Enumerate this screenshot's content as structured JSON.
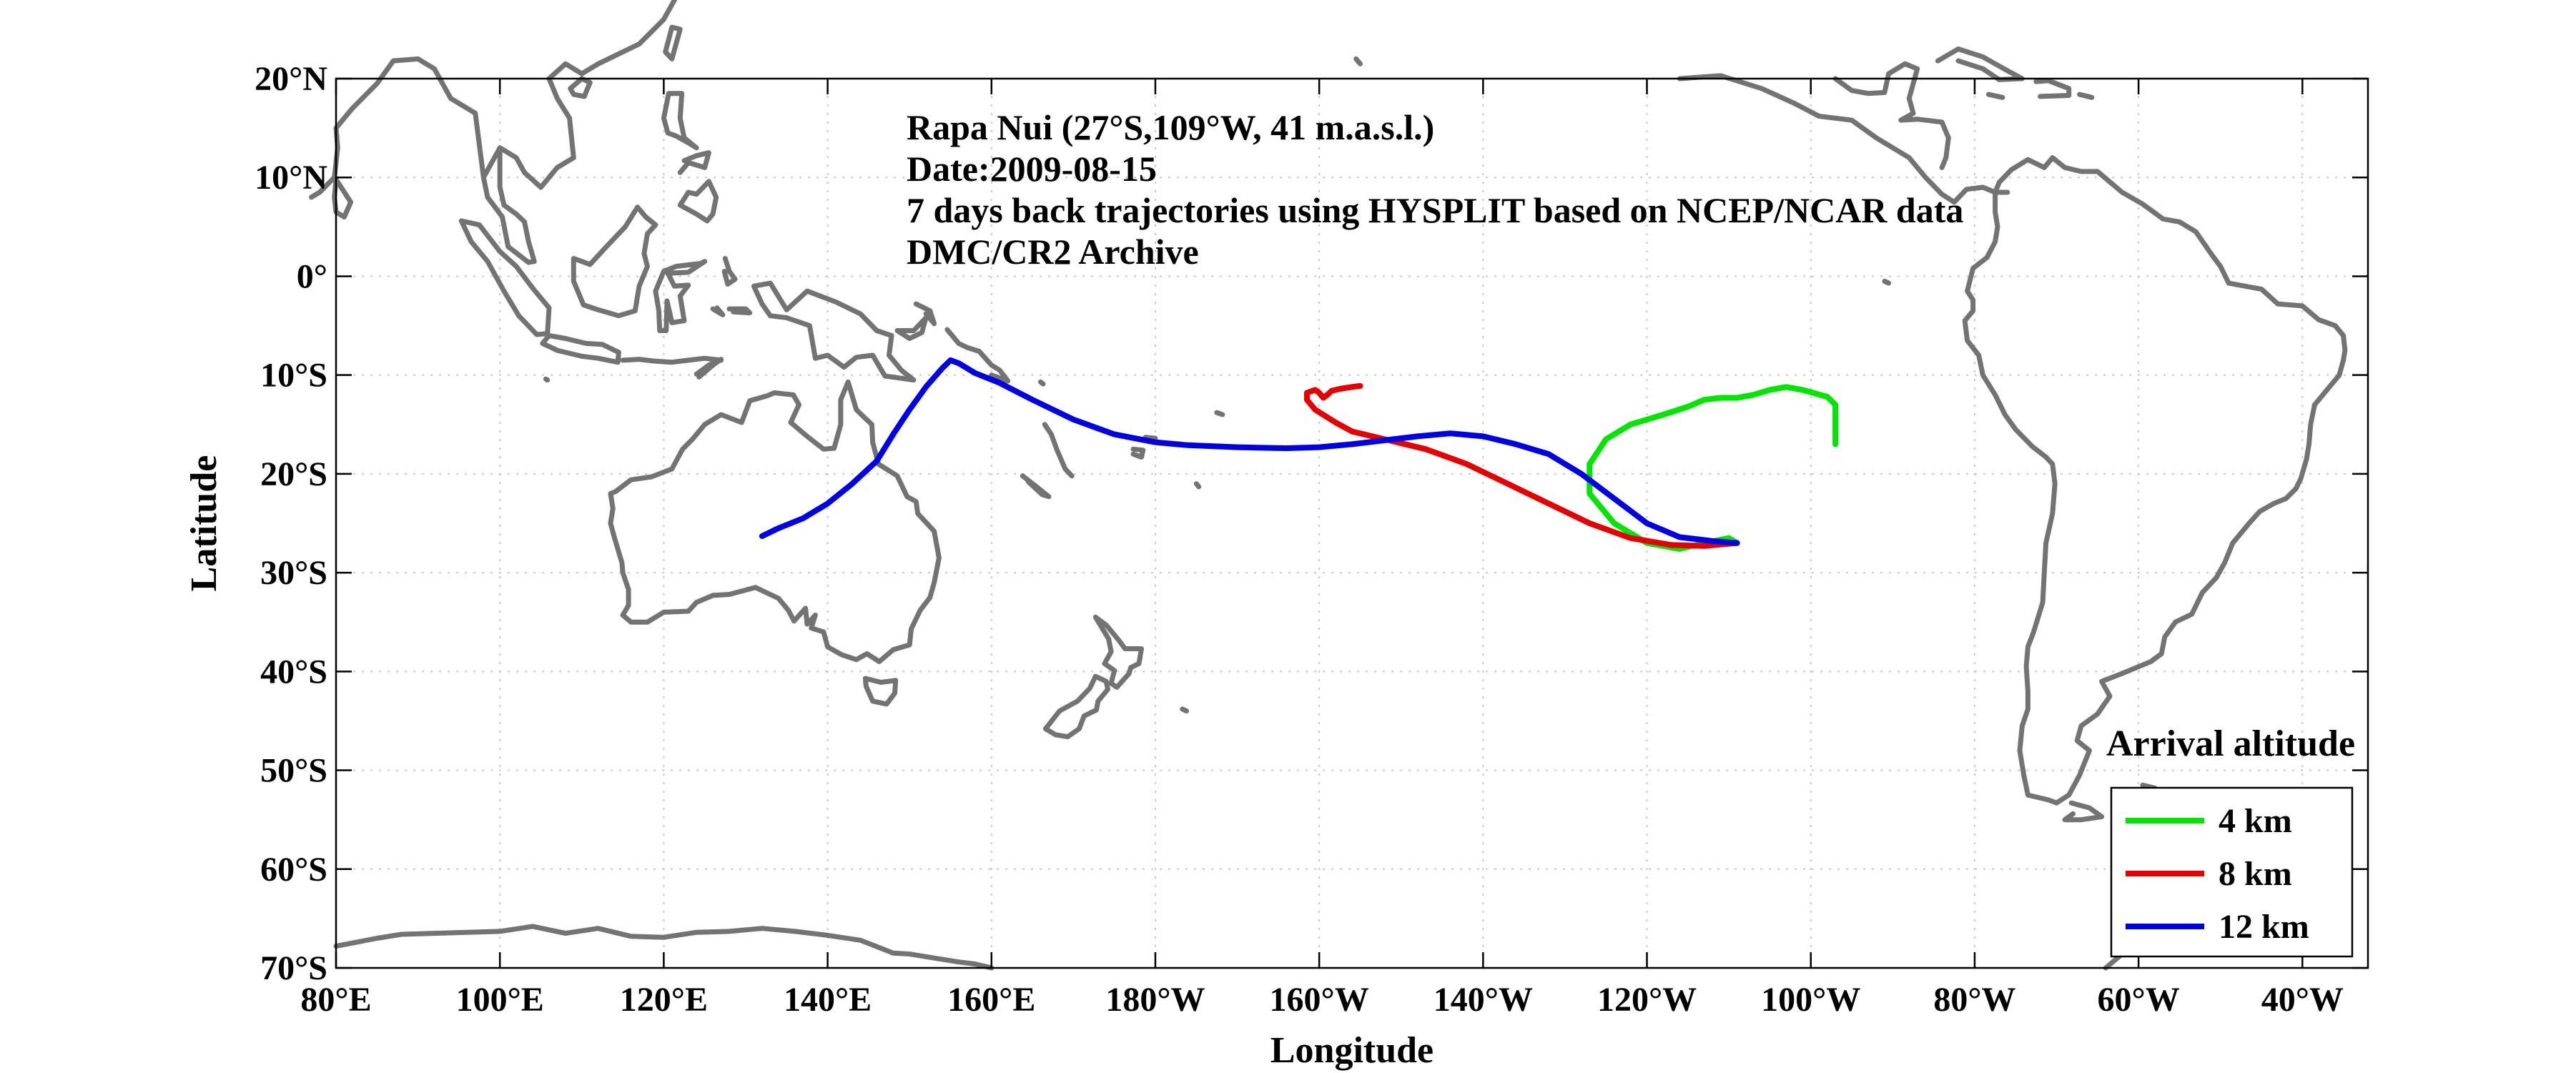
{
  "chart_data": {
    "type": "line",
    "annotations": [
      "Rapa Nui (27°S,109°W, 41 m.a.s.l.)",
      "Date:2009-08-15",
      "7 days back trajectories using HYSPLIT based on NCEP/NCAR data",
      "DMC/CR2 Archive"
    ],
    "xlabel": "Longitude",
    "ylabel": "Latitude",
    "x_ticks": [
      {
        "v": 80,
        "label": "80°E"
      },
      {
        "v": 100,
        "label": "100°E"
      },
      {
        "v": 120,
        "label": "120°E"
      },
      {
        "v": 140,
        "label": "140°E"
      },
      {
        "v": 160,
        "label": "160°E"
      },
      {
        "v": 180,
        "label": "180°W"
      },
      {
        "v": 200,
        "label": "160°W"
      },
      {
        "v": 220,
        "label": "140°W"
      },
      {
        "v": 240,
        "label": "120°W"
      },
      {
        "v": 260,
        "label": "100°W"
      },
      {
        "v": 280,
        "label": "80°W"
      },
      {
        "v": 300,
        "label": "60°W"
      },
      {
        "v": 320,
        "label": "40°W"
      }
    ],
    "y_ticks": [
      {
        "v": 20,
        "label": "20°N"
      },
      {
        "v": 10,
        "label": "10°N"
      },
      {
        "v": 0,
        "label": "0°"
      },
      {
        "v": -10,
        "label": "10°S"
      },
      {
        "v": -20,
        "label": "20°S"
      },
      {
        "v": -30,
        "label": "30°S"
      },
      {
        "v": -40,
        "label": "40°S"
      },
      {
        "v": -50,
        "label": "50°S"
      },
      {
        "v": -60,
        "label": "60°S"
      },
      {
        "v": -70,
        "label": "70°S"
      }
    ],
    "xlim": [
      80,
      328
    ],
    "ylim": [
      -70,
      20
    ],
    "x_units": "degrees longitude east (0–360)",
    "grid": true,
    "legend_title": "Arrival altitude",
    "legend_position": "bottom-right",
    "series": [
      {
        "name": "4 km",
        "color": "#00e600",
        "points": [
          [
            251,
            -27
          ],
          [
            250,
            -26.5
          ],
          [
            247,
            -27
          ],
          [
            244,
            -27.6
          ],
          [
            240,
            -27
          ],
          [
            236,
            -25
          ],
          [
            233,
            -22
          ],
          [
            233,
            -19
          ],
          [
            235,
            -16.5
          ],
          [
            238,
            -15
          ],
          [
            242,
            -14
          ],
          [
            245,
            -13.2
          ],
          [
            247,
            -12.5
          ],
          [
            249,
            -12.3
          ],
          [
            251,
            -12.3
          ],
          [
            253,
            -12
          ],
          [
            255,
            -11.5
          ],
          [
            257,
            -11.2
          ],
          [
            259,
            -11.5
          ],
          [
            262,
            -12.2
          ],
          [
            263,
            -13
          ],
          [
            263,
            -15
          ],
          [
            263,
            -17
          ]
        ]
      },
      {
        "name": "8 km",
        "color": "#e60000",
        "points": [
          [
            251,
            -27
          ],
          [
            247,
            -27.3
          ],
          [
            243,
            -27.2
          ],
          [
            238,
            -26.5
          ],
          [
            233,
            -25
          ],
          [
            228,
            -23
          ],
          [
            223,
            -21
          ],
          [
            218,
            -19
          ],
          [
            213,
            -17.5
          ],
          [
            208,
            -16.5
          ],
          [
            204,
            -15.7
          ],
          [
            202,
            -14.8
          ],
          [
            199.5,
            -13.5
          ],
          [
            198.5,
            -12.5
          ],
          [
            198.5,
            -11.8
          ],
          [
            199.5,
            -11.5
          ],
          [
            200,
            -11.8
          ],
          [
            200.5,
            -12.3
          ],
          [
            201,
            -12
          ],
          [
            201.5,
            -11.6
          ],
          [
            202.5,
            -11.4
          ],
          [
            204,
            -11.2
          ],
          [
            205,
            -11.1
          ]
        ]
      },
      {
        "name": "12 km",
        "color": "#0000e6",
        "points": [
          [
            251,
            -27
          ],
          [
            248,
            -26.8
          ],
          [
            244,
            -26.4
          ],
          [
            240,
            -25
          ],
          [
            236,
            -22.5
          ],
          [
            232,
            -20
          ],
          [
            228,
            -18
          ],
          [
            224,
            -17
          ],
          [
            220,
            -16.2
          ],
          [
            216,
            -15.9
          ],
          [
            212,
            -16.2
          ],
          [
            208,
            -16.6
          ],
          [
            204,
            -17
          ],
          [
            200,
            -17.3
          ],
          [
            196,
            -17.4
          ],
          [
            190,
            -17.3
          ],
          [
            184,
            -17.1
          ],
          [
            180,
            -16.8
          ],
          [
            175,
            -16
          ],
          [
            170,
            -14.5
          ],
          [
            165,
            -12.5
          ],
          [
            161,
            -10.8
          ],
          [
            158,
            -9.8
          ],
          [
            156,
            -8.8
          ],
          [
            155,
            -8.5
          ],
          [
            154,
            -9.3
          ],
          [
            152,
            -11.2
          ],
          [
            150,
            -13.5
          ],
          [
            148,
            -16
          ],
          [
            146,
            -18.7
          ],
          [
            143,
            -21
          ],
          [
            140,
            -23
          ],
          [
            137,
            -24.5
          ],
          [
            134,
            -25.5
          ],
          [
            132,
            -26.3
          ]
        ]
      }
    ],
    "basemap": "world coastlines"
  }
}
